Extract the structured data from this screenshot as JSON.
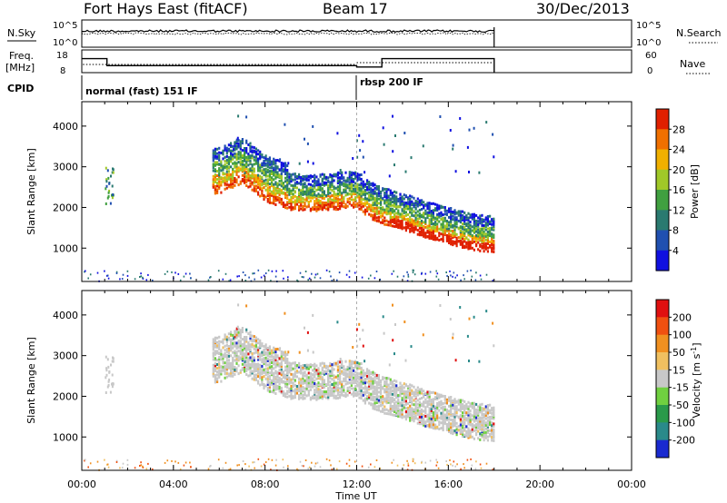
{
  "header": {
    "station": "Fort Hays East (fitACF)",
    "beam": "Beam 17",
    "date": "30/Dec/2013"
  },
  "status_panels": {
    "nsky_label": "N.Sky",
    "nsky_ticks": [
      "10^5",
      "10^0"
    ],
    "nsearch_label": "N.Search",
    "nsearch_ticks": [
      "10^5",
      "10^0"
    ],
    "freq_label_line1": "Freq.",
    "freq_label_line2": "[MHz]",
    "freq_ticks": [
      "18",
      "8"
    ],
    "nave_label": "Nave",
    "nave_ticks": [
      "60",
      "0"
    ],
    "cpid_label": "CPID",
    "cpid_segments": [
      {
        "label": "normal (fast) 151 IF",
        "start_hour": 0
      },
      {
        "label": "rbsp 200 IF",
        "start_hour": 12
      }
    ],
    "freq_mhz": [
      {
        "from_hour": 0,
        "to_hour": 1.1,
        "value": 15
      },
      {
        "from_hour": 1.1,
        "to_hour": 12,
        "value": 11.5
      },
      {
        "from_hour": 12,
        "to_hour": 13.1,
        "value": 10.8
      },
      {
        "from_hour": 13.1,
        "to_hour": 18,
        "value": 15
      }
    ],
    "data_end_hour": 18
  },
  "chart_data": [
    {
      "type": "heatmap",
      "title": "",
      "xlabel": "Time UT",
      "ylabel": "Slant Range [km]",
      "xlim": [
        0,
        24
      ],
      "ylim": [
        180,
        4600
      ],
      "x_ticks": [
        "00:00",
        "04:00",
        "08:00",
        "12:00",
        "16:00",
        "20:00",
        "00:00"
      ],
      "y_ticks": [
        1000,
        2000,
        3000,
        4000
      ],
      "colorbar": {
        "label": "Power [dB]",
        "ticks": [
          4,
          8,
          12,
          16,
          20,
          24,
          28
        ],
        "colors": [
          "#1010e0",
          "#2050b0",
          "#2a7a70",
          "#40a040",
          "#a0c828",
          "#f0b000",
          "#f07000",
          "#e02000"
        ]
      },
      "echo_band": {
        "hours": [
          1,
          6,
          7,
          8,
          9,
          10,
          11,
          12,
          12.5,
          13,
          14,
          15,
          16,
          17,
          18
        ],
        "range_km": [
          2300,
          2600,
          2850,
          2400,
          2200,
          2150,
          2200,
          2250,
          2000,
          1850,
          1700,
          1500,
          1350,
          1200,
          1150
        ]
      }
    },
    {
      "type": "heatmap",
      "title": "",
      "xlabel": "Time UT",
      "ylabel": "Slant Range [km]",
      "xlim": [
        0,
        24
      ],
      "ylim": [
        180,
        4600
      ],
      "x_ticks": [
        "00:00",
        "04:00",
        "08:00",
        "12:00",
        "16:00",
        "20:00",
        "00:00"
      ],
      "y_ticks": [
        1000,
        2000,
        3000,
        4000
      ],
      "colorbar": {
        "label": "Velocity [m s^-1]",
        "ticks": [
          200,
          100,
          50,
          15,
          -15,
          -50,
          -100,
          -200
        ],
        "colors": [
          "#1a2ad0",
          "#2a8a8a",
          "#2a9a4a",
          "#70d040",
          "#c8c8c8",
          "#f0c060",
          "#f09020",
          "#f05010",
          "#e01010"
        ]
      }
    }
  ]
}
